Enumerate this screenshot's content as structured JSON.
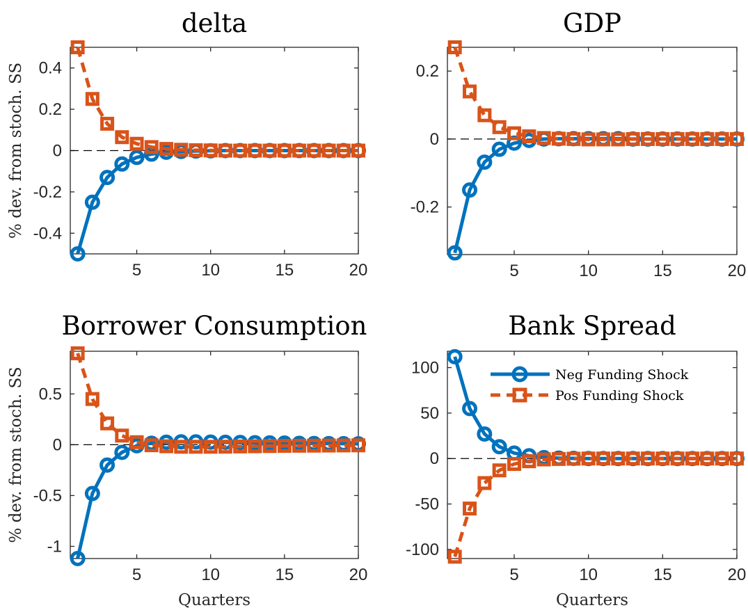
{
  "colors": {
    "neg": "#0072BD",
    "pos": "#D95319",
    "axis": "#262626",
    "zero_line": "#000000"
  },
  "chart_data": [
    {
      "type": "line",
      "title": "delta",
      "xlabel": "",
      "ylabel": "% dev. from stoch. SS",
      "xlim": [
        0.5,
        20
      ],
      "ylim": [
        -0.5,
        0.5
      ],
      "xticks": [
        5,
        10,
        15,
        20
      ],
      "xtick_labels": [
        "5",
        "10",
        "15",
        "20"
      ],
      "yticks": [
        -0.4,
        -0.2,
        0,
        0.2,
        0.4
      ],
      "ytick_labels": [
        "-0.4",
        "-0.2",
        "0",
        "0.2",
        "0.4"
      ],
      "x": [
        1,
        2,
        3,
        4,
        5,
        6,
        7,
        8,
        9,
        10,
        11,
        12,
        13,
        14,
        15,
        16,
        17,
        18,
        19,
        20
      ],
      "series": [
        {
          "name": "Neg Funding Shock",
          "style": "solid-circle",
          "values": [
            -0.5,
            -0.25,
            -0.13,
            -0.065,
            -0.033,
            -0.017,
            -0.008,
            -0.004,
            -0.002,
            -0.001,
            0,
            0,
            0,
            0,
            0,
            0,
            0,
            0,
            0,
            0
          ]
        },
        {
          "name": "Pos Funding Shock",
          "style": "dashed-square",
          "values": [
            0.5,
            0.25,
            0.13,
            0.065,
            0.033,
            0.017,
            0.008,
            0.004,
            0.002,
            0.001,
            0,
            0,
            0,
            0,
            0,
            0,
            0,
            0,
            0,
            0
          ]
        }
      ]
    },
    {
      "type": "line",
      "title": "GDP",
      "xlabel": "",
      "ylabel": "",
      "xlim": [
        0.5,
        20
      ],
      "ylim": [
        -0.34,
        0.27
      ],
      "xticks": [
        5,
        10,
        15,
        20
      ],
      "xtick_labels": [
        "5",
        "10",
        "15",
        "20"
      ],
      "yticks": [
        -0.2,
        0,
        0.2
      ],
      "ytick_labels": [
        "-0.2",
        "0",
        "0.2"
      ],
      "x": [
        1,
        2,
        3,
        4,
        5,
        6,
        7,
        8,
        9,
        10,
        11,
        12,
        13,
        14,
        15,
        16,
        17,
        18,
        19,
        20
      ],
      "series": [
        {
          "name": "Neg Funding Shock",
          "style": "solid-circle",
          "values": [
            -0.335,
            -0.15,
            -0.068,
            -0.03,
            -0.012,
            -0.004,
            0,
            0.001,
            0.001,
            0.001,
            0.001,
            0.001,
            0,
            0,
            0,
            0,
            0,
            0,
            0,
            0
          ]
        },
        {
          "name": "Pos Funding Shock",
          "style": "dashed-square",
          "values": [
            0.27,
            0.14,
            0.07,
            0.035,
            0.017,
            0.008,
            0.003,
            0.001,
            0,
            -0.001,
            -0.001,
            -0.001,
            0,
            0,
            0,
            0,
            0,
            0,
            0,
            0
          ]
        }
      ]
    },
    {
      "type": "line",
      "title": "Borrower Consumption",
      "xlabel": "Quarters",
      "ylabel": "% dev. from stoch. SS",
      "xlim": [
        0.5,
        20
      ],
      "ylim": [
        -1.12,
        0.92
      ],
      "xticks": [
        5,
        10,
        15,
        20
      ],
      "xtick_labels": [
        "5",
        "10",
        "15",
        "20"
      ],
      "yticks": [
        -1,
        -0.5,
        0,
        0.5
      ],
      "ytick_labels": [
        "-1",
        "-0.5",
        "0",
        "0.5"
      ],
      "x": [
        1,
        2,
        3,
        4,
        5,
        6,
        7,
        8,
        9,
        10,
        11,
        12,
        13,
        14,
        15,
        16,
        17,
        18,
        19,
        20
      ],
      "series": [
        {
          "name": "Neg Funding Shock",
          "style": "solid-circle",
          "values": [
            -1.12,
            -0.48,
            -0.2,
            -0.075,
            -0.01,
            0.015,
            0.025,
            0.028,
            0.028,
            0.026,
            0.024,
            0.022,
            0.02,
            0.018,
            0.016,
            0.014,
            0.012,
            0.011,
            0.01,
            0.009
          ]
        },
        {
          "name": "Pos Funding Shock",
          "style": "dashed-square",
          "values": [
            0.9,
            0.45,
            0.21,
            0.09,
            0.025,
            -0.005,
            -0.015,
            -0.02,
            -0.02,
            -0.02,
            -0.019,
            -0.017,
            -0.015,
            -0.013,
            -0.011,
            -0.01,
            -0.009,
            -0.008,
            -0.007,
            -0.006
          ]
        }
      ]
    },
    {
      "type": "line",
      "title": "Bank Spread",
      "xlabel": "Quarters",
      "ylabel": "",
      "xlim": [
        0.5,
        20
      ],
      "ylim": [
        -110,
        118
      ],
      "xticks": [
        5,
        10,
        15,
        20
      ],
      "xtick_labels": [
        "5",
        "10",
        "15",
        "20"
      ],
      "yticks": [
        -100,
        -50,
        0,
        50,
        100
      ],
      "ytick_labels": [
        "-100",
        "-50",
        "0",
        "50",
        "100"
      ],
      "legend": "top-right",
      "x": [
        1,
        2,
        3,
        4,
        5,
        6,
        7,
        8,
        9,
        10,
        11,
        12,
        13,
        14,
        15,
        16,
        17,
        18,
        19,
        20
      ],
      "series": [
        {
          "name": "Neg Funding Shock",
          "style": "solid-circle",
          "values": [
            112,
            55,
            27,
            13,
            6,
            3,
            1,
            0.5,
            0.2,
            0,
            0,
            0,
            0,
            0,
            0,
            0,
            0,
            0,
            0,
            0
          ]
        },
        {
          "name": "Pos Funding Shock",
          "style": "dashed-square",
          "values": [
            -108,
            -55,
            -27,
            -13,
            -6,
            -3,
            -1,
            -0.5,
            -0.2,
            0,
            0,
            0,
            0,
            0,
            0,
            0,
            0,
            0,
            0,
            0
          ]
        }
      ]
    }
  ],
  "legend": {
    "entries": [
      {
        "label": "Neg Funding Shock",
        "series_index": 0
      },
      {
        "label": "Pos Funding Shock",
        "series_index": 1
      }
    ]
  }
}
